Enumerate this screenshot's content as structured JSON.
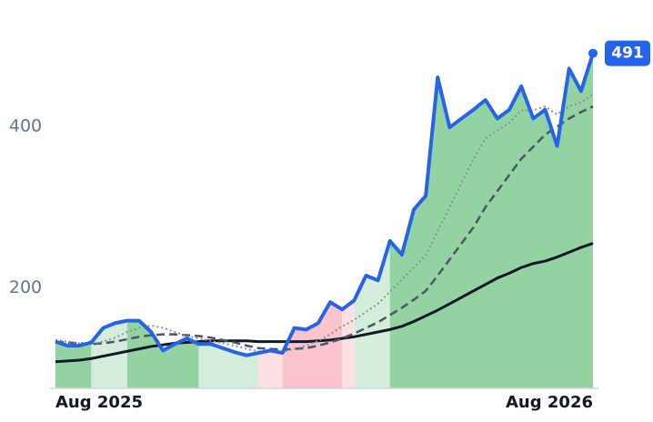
{
  "chart_data": {
    "type": "line",
    "categories": [
      "Aug 2025",
      null,
      null,
      null,
      null,
      null,
      null,
      null,
      null,
      null,
      null,
      null,
      null,
      null,
      null,
      null,
      null,
      null,
      null,
      null,
      null,
      null,
      null,
      null,
      null,
      null,
      null,
      null,
      null,
      null,
      null,
      null,
      null,
      null,
      null,
      null,
      null,
      null,
      null,
      null,
      null,
      null,
      null,
      null,
      null,
      "Aug 2026"
    ],
    "series": [
      {
        "color": "#2563eb",
        "style": "solid",
        "width": 4,
        "values": [
          133,
          128,
          128,
          132,
          150,
          156,
          159,
          159,
          145,
          122,
          130,
          137,
          130,
          130,
          125,
          120,
          116,
          119,
          122,
          119,
          150,
          148,
          156,
          182,
          173,
          184,
          215,
          209,
          258,
          241,
          297,
          314,
          461,
          399,
          410,
          421,
          433,
          410,
          421,
          450,
          410,
          421,
          376,
          472,
          444,
          491
        ]
      },
      {
        "color": "#8a8f98",
        "style": "dotted",
        "width": 2,
        "values": [
          135,
          133,
          131,
          130,
          133,
          138,
          145,
          150,
          153,
          150,
          145,
          140,
          137,
          134,
          131,
          128,
          124,
          121,
          120,
          120,
          124,
          128,
          134,
          142,
          152,
          160,
          170,
          180,
          195,
          210,
          225,
          240,
          270,
          300,
          330,
          360,
          385,
          395,
          405,
          420,
          420,
          425,
          415,
          425,
          430,
          440
        ]
      },
      {
        "color": "#4b5563",
        "style": "dashed",
        "width": 2.5,
        "values": [
          133,
          132,
          131,
          130,
          131,
          133,
          136,
          139,
          141,
          142,
          142,
          141,
          140,
          138,
          135,
          132,
          128,
          125,
          124,
          123,
          124,
          125,
          128,
          132,
          137,
          143,
          150,
          157,
          166,
          175,
          185,
          196,
          215,
          235,
          255,
          275,
          300,
          320,
          340,
          360,
          375,
          390,
          400,
          410,
          418,
          425
        ]
      },
      {
        "color": "#111827",
        "style": "solid",
        "width": 3,
        "values": [
          108,
          109,
          110,
          112,
          115,
          118,
          121,
          124,
          127,
          129,
          131,
          132,
          133,
          134,
          134,
          134,
          134,
          133,
          133,
          133,
          133,
          133,
          134,
          135,
          137,
          139,
          142,
          145,
          148,
          152,
          158,
          165,
          172,
          180,
          188,
          196,
          204,
          212,
          218,
          225,
          230,
          233,
          238,
          244,
          250,
          255
        ]
      }
    ],
    "bands": [
      {
        "start": 0,
        "end": 3,
        "color": "#93d3a2"
      },
      {
        "start": 3,
        "end": 6,
        "color": "#d4eedb"
      },
      {
        "start": 6,
        "end": 12,
        "color": "#93d3a2"
      },
      {
        "start": 12,
        "end": 17,
        "color": "#d4eedb"
      },
      {
        "start": 17,
        "end": 19,
        "color": "#fde0e4"
      },
      {
        "start": 19,
        "end": 24,
        "color": "#f9c4cc"
      },
      {
        "start": 24,
        "end": 25,
        "color": "#fde0e4"
      },
      {
        "start": 25,
        "end": 28,
        "color": "#d4eedb"
      },
      {
        "start": 28,
        "end": 45,
        "color": "#93d3a2"
      }
    ],
    "ylim": [
      75,
      512
    ],
    "yticks": [
      200,
      400
    ],
    "grid": false
  }
}
